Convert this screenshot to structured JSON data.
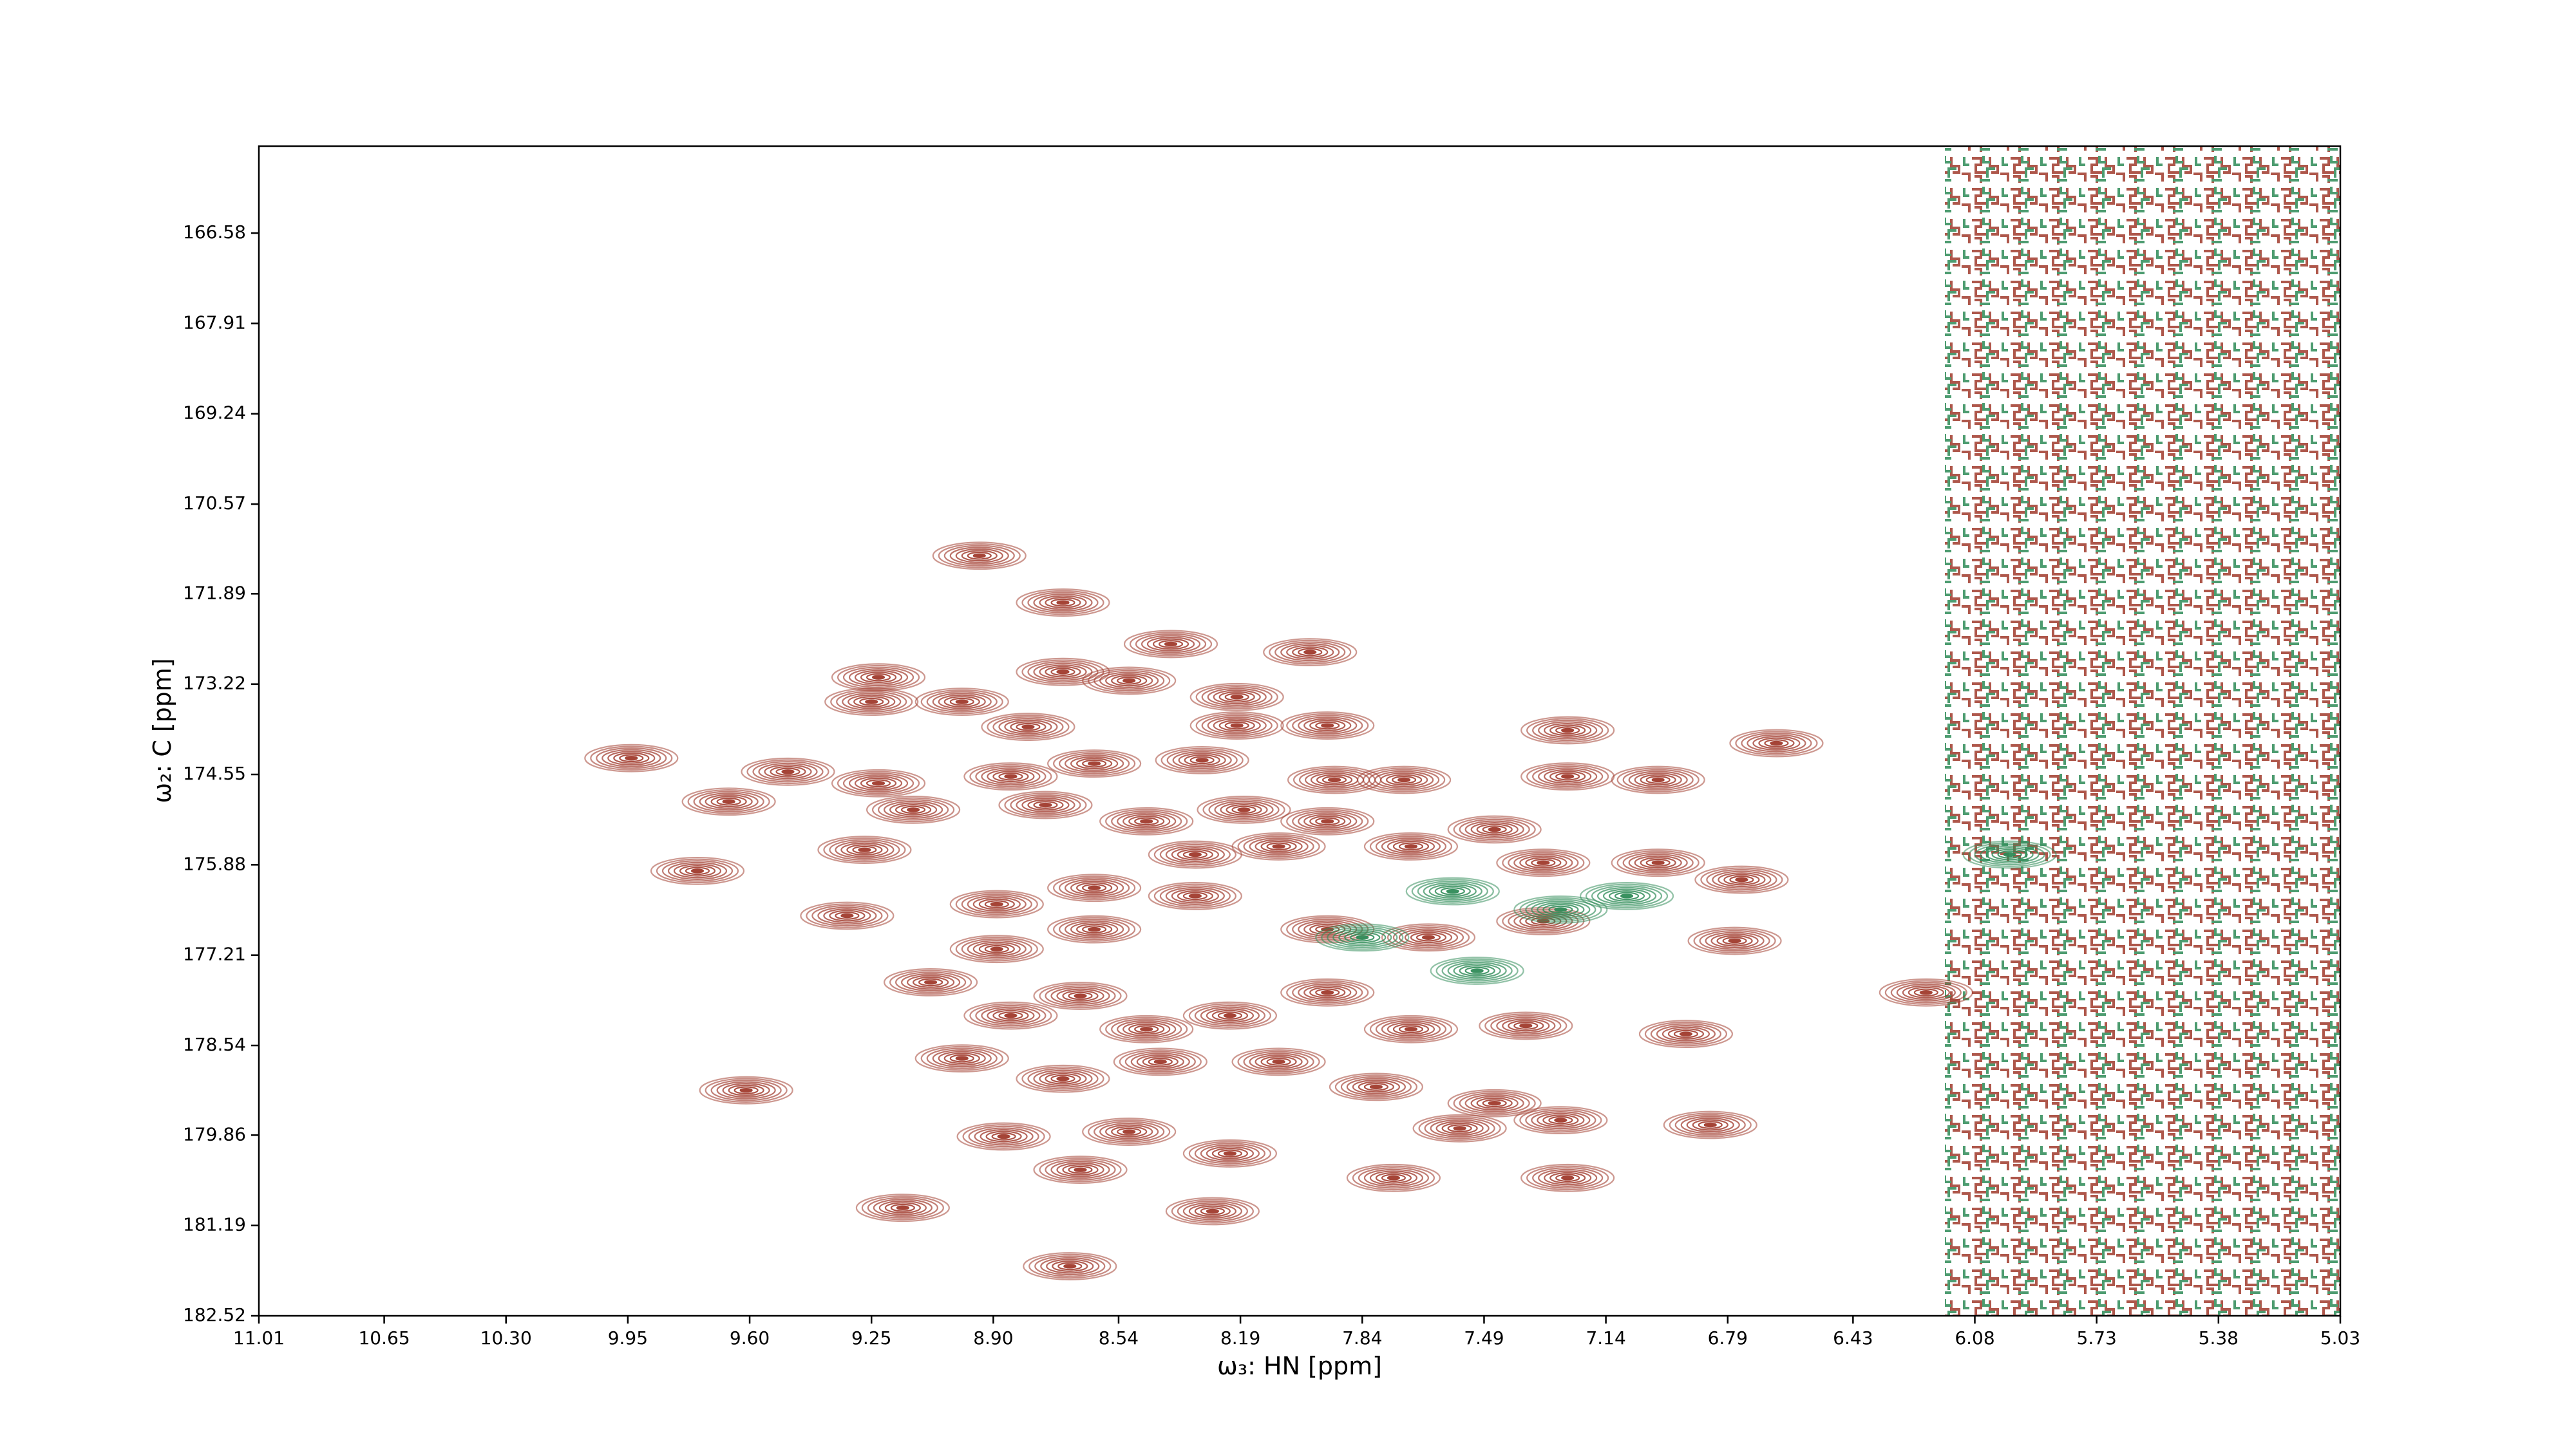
{
  "chart_data": {
    "type": "contour",
    "xlabel": "ω₃: HN [ppm]",
    "ylabel": "ω₂: C [ppm]",
    "xlim": [
      11.01,
      5.03
    ],
    "ylim": [
      182.52,
      165.3
    ],
    "xticks": [
      11.01,
      10.65,
      {
        "value": 10.3,
        "label": "10.30"
      },
      9.95,
      {
        "value": 9.6,
        "label": "9.60"
      },
      9.25,
      {
        "value": 8.9,
        "label": "8.90"
      },
      8.54,
      8.19,
      7.84,
      7.49,
      7.14,
      6.79,
      6.43,
      6.08,
      5.73,
      5.38,
      5.03
    ],
    "yticks": [
      166.58,
      167.91,
      169.24,
      170.57,
      171.89,
      173.22,
      174.55,
      175.88,
      177.21,
      178.54,
      179.86,
      181.19,
      182.52
    ],
    "series": [
      {
        "color": "#a0392b",
        "x": [
          8.94,
          8.7,
          8.39,
          7.99,
          9.23,
          8.7,
          9.25,
          8.99,
          8.8,
          8.51,
          8.2,
          8.2,
          7.94,
          9.94,
          9.49,
          9.66,
          9.23,
          9.13,
          8.85,
          8.61,
          8.3,
          7.92,
          7.72,
          7.25,
          7.25,
          6.99,
          6.65,
          9.27,
          9.75,
          8.75,
          8.46,
          8.18,
          7.94,
          7.7,
          7.46,
          7.32,
          6.99,
          6.75,
          9.32,
          8.89,
          8.61,
          8.32,
          8.08,
          8.61,
          8.89,
          9.08,
          8.32,
          7.94,
          7.65,
          7.32,
          6.77,
          8.85,
          8.99,
          8.65,
          8.46,
          8.22,
          7.94,
          7.7,
          7.37,
          6.91,
          6.22,
          9.61,
          8.7,
          8.42,
          8.08,
          7.8,
          7.46,
          8.87,
          8.51,
          8.22,
          7.56,
          7.27,
          6.84,
          8.65,
          7.75,
          7.25,
          9.16,
          8.27,
          8.68
        ],
        "values": [
          171.33,
          172.02,
          172.63,
          172.75,
          173.12,
          173.04,
          173.48,
          173.48,
          173.85,
          173.17,
          173.41,
          173.83,
          173.83,
          174.31,
          174.51,
          174.95,
          174.68,
          175.07,
          174.58,
          174.39,
          174.34,
          174.63,
          174.63,
          173.9,
          174.58,
          174.63,
          174.09,
          175.66,
          175.97,
          175.0,
          175.24,
          175.07,
          175.24,
          175.61,
          175.36,
          175.85,
          175.85,
          176.1,
          176.63,
          176.46,
          176.22,
          175.73,
          175.61,
          176.83,
          177.12,
          177.61,
          176.34,
          176.83,
          176.95,
          176.71,
          177.0,
          178.1,
          178.73,
          177.81,
          178.3,
          178.1,
          177.76,
          178.3,
          178.25,
          178.37,
          177.76,
          179.2,
          179.03,
          178.78,
          178.78,
          179.15,
          179.39,
          179.88,
          179.81,
          180.13,
          179.76,
          179.64,
          179.71,
          180.37,
          180.49,
          180.49,
          180.93,
          180.98,
          181.79
        ]
      },
      {
        "color": "#2e8b57",
        "x": [
          7.84,
          7.58,
          7.27,
          7.08,
          7.51,
          5.98
        ],
        "values": [
          176.95,
          176.27,
          176.54,
          176.34,
          177.44,
          175.73
        ]
      }
    ]
  }
}
